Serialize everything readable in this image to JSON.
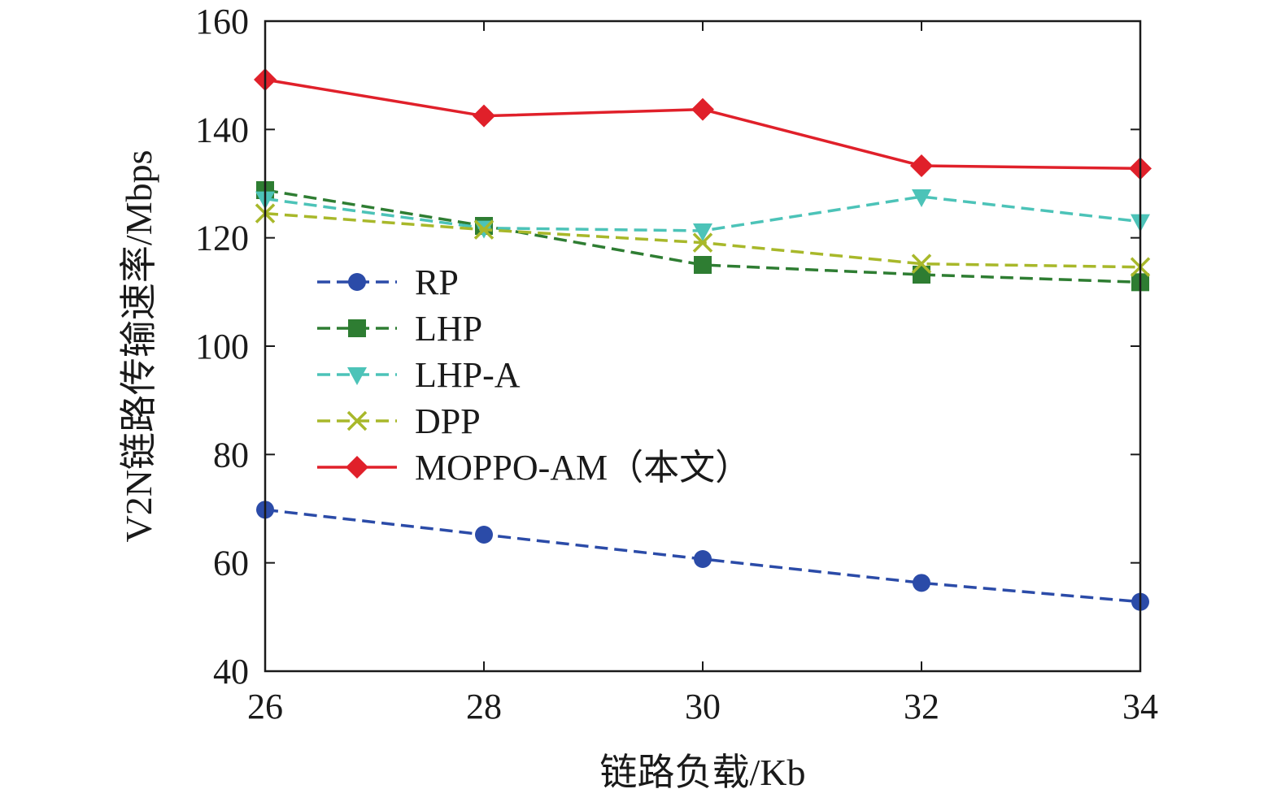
{
  "chart_data": {
    "type": "line",
    "title": "",
    "xlabel": "链路负载/Kb",
    "ylabel": "V2N链路传输速率/Mbps",
    "x": [
      26,
      28,
      30,
      32,
      34
    ],
    "xlim": [
      26,
      34
    ],
    "ylim": [
      40,
      160
    ],
    "xticks": [
      26,
      28,
      30,
      32,
      34
    ],
    "yticks": [
      40,
      60,
      80,
      100,
      120,
      140,
      160
    ],
    "grid": false,
    "legend_position": "center-left",
    "series": [
      {
        "name": "RP",
        "values": [
          69.8,
          65.2,
          60.7,
          56.3,
          52.8
        ],
        "color": "#2b4ba8",
        "dash": true,
        "marker": "circle"
      },
      {
        "name": "LHP",
        "values": [
          128.8,
          122.2,
          115.0,
          113.2,
          111.8
        ],
        "color": "#2e7d32",
        "dash": true,
        "marker": "square"
      },
      {
        "name": "LHP-A",
        "values": [
          127.2,
          121.8,
          121.3,
          127.6,
          123.0
        ],
        "color": "#4cc3b8",
        "dash": true,
        "marker": "triangle-down"
      },
      {
        "name": "DPP",
        "values": [
          124.5,
          121.5,
          119.1,
          115.2,
          114.6
        ],
        "color": "#a8b82a",
        "dash": true,
        "marker": "x"
      },
      {
        "name": "MOPPO-AM（本文）",
        "values": [
          149.2,
          142.5,
          143.7,
          133.3,
          132.8
        ],
        "color": "#e0202a",
        "dash": false,
        "marker": "diamond"
      }
    ]
  }
}
